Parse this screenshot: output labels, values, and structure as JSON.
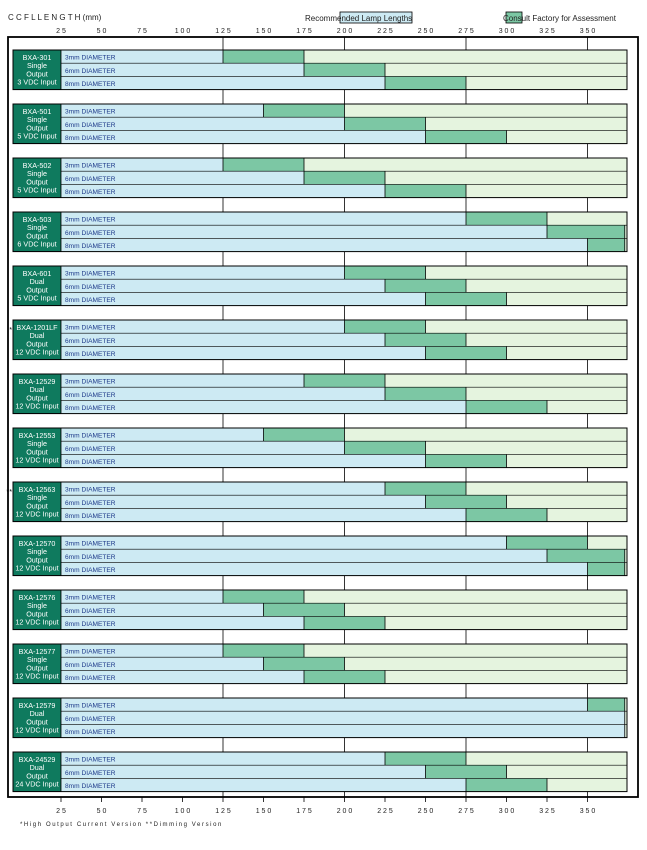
{
  "header": {
    "title": "C C F L   L E N G T H  (mm)",
    "legend_recommended": "Recommended Lamp Lengths",
    "legend_consult": "Consult Factory for Assessment"
  },
  "footer_note": "*High Output Current Version   **Dimming Version",
  "colors": {
    "recommended": "#cdeaf3",
    "consult": "#7cc7a4",
    "unsupported": "#e5f4df",
    "label_box": "#0f7a5e",
    "frame": "#000000"
  },
  "chart_data": {
    "type": "bar",
    "orientation": "horizontal",
    "stacked": true,
    "x_axis": {
      "label": "CCFL LENGTH (mm)",
      "ticks": [
        25,
        50,
        75,
        100,
        125,
        150,
        175,
        200,
        225,
        250,
        275,
        300,
        325,
        350
      ],
      "range": [
        25,
        373
      ]
    },
    "series_names": [
      "Recommended Lamp Lengths",
      "Consult Factory for Assessment"
    ],
    "diameter_labels": [
      "3mm DIAMETER",
      "6mm DIAMETER",
      "8mm DIAMETER"
    ],
    "groups": [
      {
        "mark": "",
        "label": [
          "BXA-301",
          "Single",
          "Output",
          "3 VDC Input"
        ],
        "rows": [
          [
            125,
            175
          ],
          [
            175,
            225
          ],
          [
            225,
            275
          ]
        ]
      },
      {
        "mark": "",
        "label": [
          "BXA-501",
          "Single",
          "Output",
          "5 VDC Input"
        ],
        "rows": [
          [
            150,
            200
          ],
          [
            200,
            250
          ],
          [
            250,
            300
          ]
        ]
      },
      {
        "mark": "",
        "label": [
          "BXA-502",
          "Single",
          "Output",
          "5 VDC Input"
        ],
        "rows": [
          [
            125,
            175
          ],
          [
            175,
            225
          ],
          [
            225,
            275
          ]
        ]
      },
      {
        "mark": "",
        "label": [
          "BXA-503",
          "Single",
          "Output",
          "6 VDC Input"
        ],
        "rows": [
          [
            275,
            325
          ],
          [
            325,
            373
          ],
          [
            350,
            373
          ]
        ]
      },
      {
        "mark": "",
        "label": [
          "BXA-601",
          "Dual",
          "Output",
          "5 VDC Input"
        ],
        "rows": [
          [
            200,
            250
          ],
          [
            225,
            275
          ],
          [
            250,
            300
          ]
        ]
      },
      {
        "mark": "*",
        "label": [
          "BXA-1201LF",
          "Dual",
          "Output",
          "12 VDC Input"
        ],
        "rows": [
          [
            200,
            250
          ],
          [
            225,
            275
          ],
          [
            250,
            300
          ]
        ]
      },
      {
        "mark": "",
        "label": [
          "BXA-12529",
          "Dual",
          "Output",
          "12 VDC Input"
        ],
        "rows": [
          [
            175,
            225
          ],
          [
            225,
            275
          ],
          [
            275,
            325
          ]
        ]
      },
      {
        "mark": "",
        "label": [
          "BXA-12553",
          "Single",
          "Output",
          "12 VDC Input"
        ],
        "rows": [
          [
            150,
            200
          ],
          [
            200,
            250
          ],
          [
            250,
            300
          ]
        ]
      },
      {
        "mark": "**",
        "label": [
          "BXA-12563",
          "Single",
          "Output",
          "12 VDC Input"
        ],
        "rows": [
          [
            225,
            275
          ],
          [
            250,
            300
          ],
          [
            275,
            325
          ]
        ]
      },
      {
        "mark": "",
        "label": [
          "BXA-12570",
          "Single",
          "Output",
          "12 VDC Input"
        ],
        "rows": [
          [
            300,
            350
          ],
          [
            325,
            373
          ],
          [
            350,
            373
          ]
        ]
      },
      {
        "mark": "",
        "label": [
          "BXA-12576",
          "Single",
          "Output",
          "12 VDC Input"
        ],
        "rows": [
          [
            125,
            175
          ],
          [
            150,
            200
          ],
          [
            175,
            225
          ]
        ]
      },
      {
        "mark": "",
        "label": [
          "BXA-12577",
          "Single",
          "Output",
          "12 VDC Input"
        ],
        "rows": [
          [
            125,
            175
          ],
          [
            150,
            200
          ],
          [
            175,
            225
          ]
        ]
      },
      {
        "mark": "",
        "label": [
          "BXA-12579",
          "Dual",
          "Output",
          "12 VDC Input"
        ],
        "rows": [
          [
            350,
            373
          ],
          [
            373,
            373
          ],
          [
            373,
            373
          ]
        ]
      },
      {
        "mark": "",
        "label": [
          "BXA-24529",
          "Dual",
          "Output",
          "24 VDC Input"
        ],
        "rows": [
          [
            225,
            275
          ],
          [
            250,
            300
          ],
          [
            275,
            325
          ]
        ]
      }
    ]
  }
}
